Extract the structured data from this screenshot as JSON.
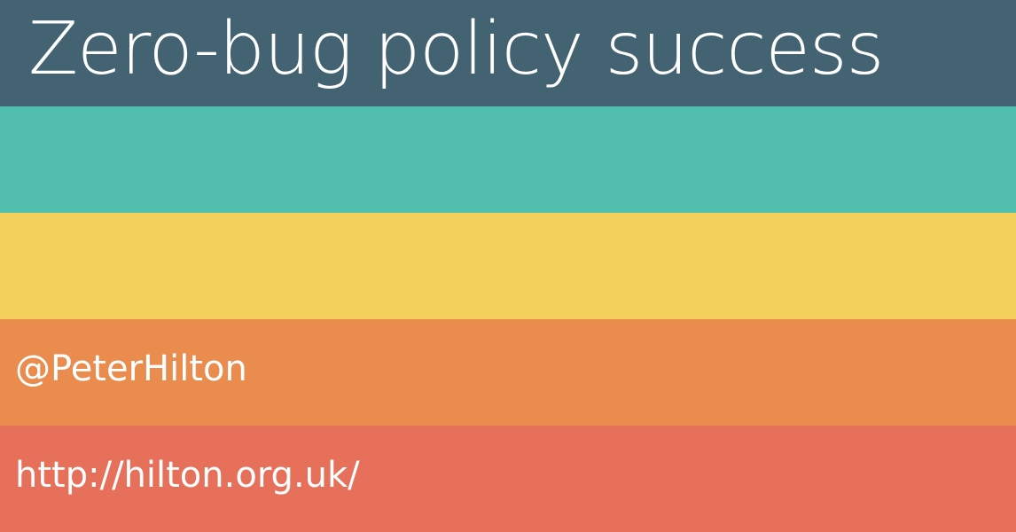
{
  "slide": {
    "title": "Zero-bug policy success",
    "twitter_handle": "@PeterHilton",
    "website": "http://hilton.org.uk/"
  },
  "colors": {
    "title_band": "#436272",
    "teal_band": "#51bead",
    "yellow_band": "#f3cf5b",
    "orange_band": "#e98c4e",
    "red_band": "#e7705a",
    "text": "#ffffff"
  }
}
